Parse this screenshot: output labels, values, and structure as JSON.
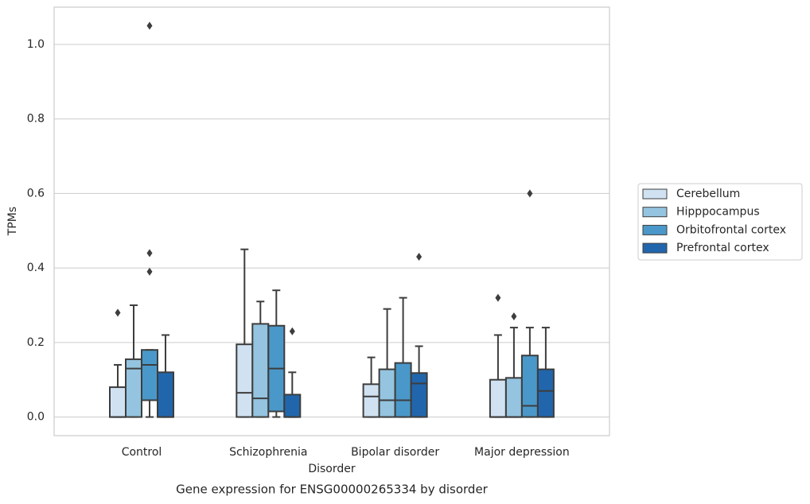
{
  "chart_data": {
    "type": "box",
    "title": "Gene expression for ENSG00000265334 by disorder",
    "x_label": "Disorder",
    "y_label": "TPMs",
    "categories": [
      "Control",
      "Schizophrenia",
      "Bipolar disorder",
      "Major depression"
    ],
    "ylim": [
      -0.05,
      1.1
    ],
    "yticks": [
      {
        "value": 0,
        "label": "0.0"
      },
      0.2,
      0.4,
      0.6,
      0.8,
      {
        "value": 1,
        "label": "1.0"
      }
    ],
    "grid": true,
    "legend": "right",
    "series": [
      {
        "name": "Cerebellum",
        "color": "#d0e1f2",
        "boxes": [
          {
            "whislo": 0,
            "q1": 0,
            "median": 0,
            "q3": 0.08,
            "whishi": 0.14,
            "fliers": [
              0.28
            ]
          },
          {
            "whislo": 0,
            "q1": 0,
            "median": 0.065,
            "q3": 0.195,
            "whishi": 0.45,
            "fliers": []
          },
          {
            "whislo": 0,
            "q1": 0,
            "median": 0.055,
            "q3": 0.088,
            "whishi": 0.16,
            "fliers": []
          },
          {
            "whislo": 0,
            "q1": 0,
            "median": 0,
            "q3": 0.1,
            "whishi": 0.22,
            "fliers": [
              0.32
            ]
          }
        ]
      },
      {
        "name": "Hipppocampus",
        "color": "#94c4df",
        "boxes": [
          {
            "whislo": 0,
            "q1": 0,
            "median": 0.13,
            "q3": 0.155,
            "whishi": 0.3,
            "fliers": []
          },
          {
            "whislo": 0,
            "q1": 0,
            "median": 0.05,
            "q3": 0.25,
            "whishi": 0.31,
            "fliers": []
          },
          {
            "whislo": 0,
            "q1": 0,
            "median": 0.045,
            "q3": 0.128,
            "whishi": 0.29,
            "fliers": []
          },
          {
            "whislo": 0,
            "q1": 0,
            "median": 0,
            "q3": 0.105,
            "whishi": 0.24,
            "fliers": [
              0.27
            ]
          }
        ]
      },
      {
        "name": "Orbitofrontal cortex",
        "color": "#4a98c9",
        "boxes": [
          {
            "whislo": 0,
            "q1": 0.045,
            "median": 0.14,
            "q3": 0.18,
            "whishi": 0.18,
            "fliers": [
              1.05,
              0.44,
              0.39
            ]
          },
          {
            "whislo": 0,
            "q1": 0.015,
            "median": 0.13,
            "q3": 0.245,
            "whishi": 0.34,
            "fliers": []
          },
          {
            "whislo": 0,
            "q1": 0,
            "median": 0.045,
            "q3": 0.145,
            "whishi": 0.32,
            "fliers": []
          },
          {
            "whislo": 0,
            "q1": 0,
            "median": 0.03,
            "q3": 0.165,
            "whishi": 0.24,
            "fliers": [
              0.6
            ]
          }
        ]
      },
      {
        "name": "Prefrontal cortex",
        "color": "#2166ac",
        "boxes": [
          {
            "whislo": 0,
            "q1": 0,
            "median": 0,
            "q3": 0.12,
            "whishi": 0.22,
            "fliers": []
          },
          {
            "whislo": 0,
            "q1": 0,
            "median": 0,
            "q3": 0.06,
            "whishi": 0.12,
            "fliers": [
              0.23
            ]
          },
          {
            "whislo": 0,
            "q1": 0,
            "median": 0.09,
            "q3": 0.118,
            "whishi": 0.19,
            "fliers": [
              0.43
            ]
          },
          {
            "whislo": 0,
            "q1": 0,
            "median": 0.07,
            "q3": 0.128,
            "whishi": 0.24,
            "fliers": []
          }
        ]
      }
    ]
  }
}
